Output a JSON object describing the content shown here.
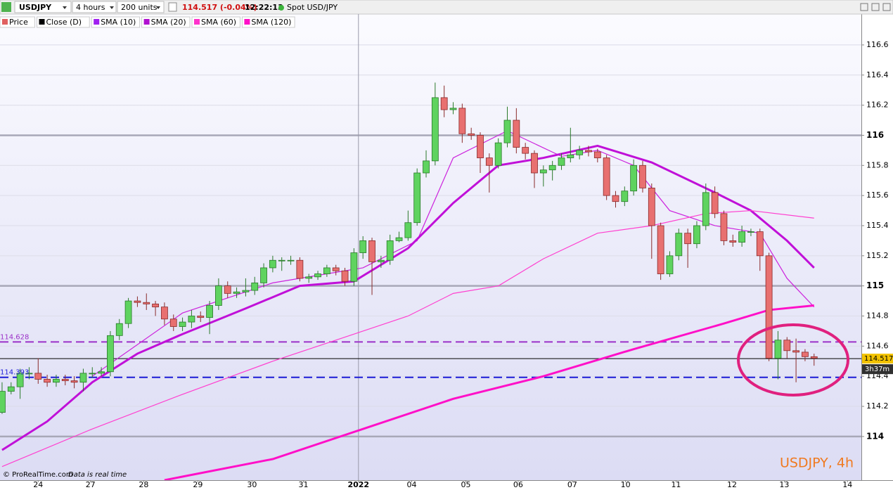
{
  "chart_data": {
    "type": "candlestick",
    "toolbar": {
      "symbol": "USDJPY",
      "interval": "4 hours",
      "units": "200 units",
      "quote": "114.517 (-0.04%)",
      "time": "12:22:13",
      "instrument": "Spot USD/JPY"
    },
    "legend": [
      "Price",
      "Close (D)",
      "SMA (10)",
      "SMA (20)",
      "SMA (60)",
      "SMA (120)"
    ],
    "legend_colors": [
      "#e06060",
      "#000000",
      "#a020f0",
      "#b010d0",
      "#ff33cc",
      "#ff10c8"
    ],
    "up_color": "#5fd35f",
    "down_color": "#e87070",
    "open": [
      114.16,
      114.3,
      114.33,
      114.42,
      114.42,
      114.38,
      114.36,
      114.38,
      114.37,
      114.36,
      114.42,
      114.42,
      114.43,
      114.67,
      114.75,
      114.9,
      114.89,
      114.88,
      114.86,
      114.78,
      114.73,
      114.76,
      114.8,
      114.79,
      114.87,
      115.0,
      114.95,
      114.96,
      114.97,
      115.02,
      115.12,
      115.17,
      115.17,
      115.17,
      115.05,
      115.06,
      115.08,
      115.12,
      115.1,
      115.03,
      115.22,
      115.3,
      115.16,
      115.17,
      115.3,
      115.32,
      115.42,
      115.75,
      115.83,
      116.25,
      116.17,
      116.18,
      116.01,
      116.0,
      115.85,
      115.8,
      115.95,
      116.1,
      115.92,
      115.88,
      115.75,
      115.77,
      115.8,
      115.85,
      115.87,
      115.9,
      115.89,
      115.85,
      115.6,
      115.56,
      115.63,
      115.8,
      115.65,
      115.4,
      115.08,
      115.2,
      115.35,
      115.28,
      115.4,
      115.62,
      115.48,
      115.3,
      115.29,
      115.36,
      115.36,
      115.2,
      114.52,
      114.64,
      114.57,
      114.56,
      114.53
    ],
    "high": [
      114.36,
      114.36,
      114.45,
      114.46,
      114.52,
      114.41,
      114.41,
      114.41,
      114.4,
      114.45,
      114.46,
      114.46,
      114.7,
      114.78,
      114.92,
      114.93,
      114.95,
      114.9,
      114.89,
      114.81,
      114.79,
      114.84,
      114.83,
      114.9,
      115.05,
      115.03,
      114.99,
      115.05,
      115.06,
      115.15,
      115.2,
      115.19,
      115.2,
      115.19,
      115.08,
      115.1,
      115.14,
      115.14,
      115.12,
      115.25,
      115.33,
      115.32,
      115.2,
      115.34,
      115.36,
      115.5,
      115.78,
      115.9,
      116.35,
      116.33,
      116.22,
      116.21,
      116.05,
      116.02,
      115.88,
      115.98,
      116.19,
      116.18,
      115.95,
      115.9,
      115.8,
      115.83,
      115.88,
      116.05,
      115.93,
      115.93,
      115.91,
      115.87,
      115.63,
      115.66,
      115.84,
      115.83,
      115.68,
      115.42,
      115.23,
      115.38,
      115.38,
      115.43,
      115.68,
      115.66,
      115.5,
      115.34,
      115.4,
      115.38,
      115.38,
      115.22,
      114.7,
      114.66,
      114.65,
      114.58,
      114.55
    ],
    "low": [
      114.15,
      114.28,
      114.25,
      114.38,
      114.35,
      114.33,
      114.33,
      114.34,
      114.32,
      114.3,
      114.39,
      114.4,
      114.4,
      114.64,
      114.72,
      114.86,
      114.84,
      114.8,
      114.74,
      114.7,
      114.7,
      114.72,
      114.76,
      114.68,
      114.84,
      114.92,
      114.92,
      114.93,
      114.94,
      114.99,
      115.09,
      115.1,
      115.14,
      115.03,
      115.02,
      115.04,
      115.06,
      115.07,
      115.0,
      115.0,
      115.18,
      114.94,
      115.12,
      115.14,
      115.29,
      115.3,
      115.4,
      115.72,
      115.8,
      116.12,
      116.14,
      115.95,
      115.97,
      115.75,
      115.62,
      115.78,
      115.92,
      115.88,
      115.84,
      115.65,
      115.66,
      115.7,
      115.77,
      115.82,
      115.84,
      115.86,
      115.82,
      115.57,
      115.52,
      115.53,
      115.6,
      115.62,
      115.18,
      115.04,
      115.06,
      115.17,
      115.12,
      115.25,
      115.37,
      115.45,
      115.27,
      115.26,
      115.26,
      115.33,
      115.1,
      114.5,
      114.38,
      114.52,
      114.36,
      114.5,
      114.47
    ],
    "close": [
      114.3,
      114.33,
      114.42,
      114.42,
      114.38,
      114.36,
      114.38,
      114.37,
      114.36,
      114.42,
      114.42,
      114.43,
      114.67,
      114.75,
      114.9,
      114.89,
      114.88,
      114.86,
      114.78,
      114.73,
      114.76,
      114.8,
      114.79,
      114.87,
      115.0,
      114.95,
      114.96,
      114.97,
      115.02,
      115.12,
      115.17,
      115.17,
      115.17,
      115.05,
      115.06,
      115.08,
      115.12,
      115.1,
      115.03,
      115.22,
      115.3,
      115.16,
      115.17,
      115.3,
      115.32,
      115.42,
      115.75,
      115.83,
      116.25,
      116.17,
      116.18,
      116.01,
      116.0,
      115.85,
      115.8,
      115.95,
      116.1,
      115.92,
      115.88,
      115.75,
      115.77,
      115.8,
      115.85,
      115.87,
      115.9,
      115.89,
      115.85,
      115.6,
      115.56,
      115.63,
      115.8,
      115.65,
      115.4,
      115.08,
      115.2,
      115.35,
      115.28,
      115.4,
      115.62,
      115.48,
      115.3,
      115.29,
      115.36,
      115.36,
      115.2,
      114.52,
      114.64,
      114.57,
      114.56,
      114.53,
      114.52
    ],
    "series": [
      {
        "name": "SMA (10)",
        "color": "#cc22dd",
        "width": 1.2,
        "x": [
          10,
          20,
          30,
          40,
          46,
          50,
          56,
          62,
          66,
          70,
          74,
          79,
          84,
          87,
          90
        ],
        "values": [
          114.4,
          114.82,
          115.02,
          115.12,
          115.3,
          115.85,
          116.03,
          115.86,
          115.9,
          115.8,
          115.5,
          115.4,
          115.35,
          115.05,
          114.86
        ]
      },
      {
        "name": "SMA (20)",
        "color": "#c010d8",
        "width": 3,
        "x": [
          0,
          5,
          10,
          15,
          20,
          27,
          33,
          39,
          45,
          50,
          55,
          60,
          66,
          72,
          79,
          83,
          87,
          90
        ],
        "values": [
          113.91,
          114.1,
          114.36,
          114.55,
          114.68,
          114.85,
          115.0,
          115.03,
          115.25,
          115.55,
          115.8,
          115.85,
          115.93,
          115.82,
          115.62,
          115.5,
          115.3,
          115.12
        ]
      },
      {
        "name": "SMA (60)",
        "color": "#ff40d0",
        "width": 1.2,
        "x": [
          0,
          10,
          20,
          30,
          40,
          45,
          50,
          55,
          60,
          66,
          72,
          78,
          83,
          90
        ],
        "values": [
          113.8,
          114.05,
          114.28,
          114.5,
          114.7,
          114.8,
          114.95,
          115.0,
          115.18,
          115.35,
          115.4,
          115.48,
          115.5,
          115.45
        ]
      },
      {
        "name": "SMA (120)",
        "color": "#ff10c8",
        "width": 3,
        "x": [
          18,
          30,
          40,
          50,
          60,
          70,
          80,
          85,
          90
        ],
        "values": [
          113.71,
          113.85,
          114.05,
          114.25,
          114.4,
          114.58,
          114.75,
          114.84,
          114.87
        ]
      }
    ],
    "levels": [
      {
        "value": 114.628,
        "color": "#9b30c8"
      },
      {
        "value": 114.393,
        "color": "#1c1cd8"
      }
    ],
    "last_price": 114.517,
    "countdown": "3h37m",
    "xlim": [
      -0.23,
      95.24
    ],
    "ylim": [
      113.71,
      116.805
    ],
    "yticks": [
      114,
      114.2,
      114.4,
      114.6,
      114.8,
      115,
      115.2,
      115.4,
      115.6,
      115.8,
      116,
      116.2,
      116.4,
      116.6
    ],
    "xticks": [
      {
        "value": 4,
        "label": "24"
      },
      {
        "value": 9.8,
        "label": "27"
      },
      {
        "value": 15.7,
        "label": "28"
      },
      {
        "value": 21.7,
        "label": "29"
      },
      {
        "value": 27.7,
        "label": "30"
      },
      {
        "value": 33.4,
        "label": "31"
      },
      {
        "value": 39.5,
        "label": "2022"
      },
      {
        "value": 45.4,
        "label": "04"
      },
      {
        "value": 51.4,
        "label": "05"
      },
      {
        "value": 57.2,
        "label": "06"
      },
      {
        "value": 63.2,
        "label": "07"
      },
      {
        "value": 69.1,
        "label": "10"
      },
      {
        "value": 74.7,
        "label": "11"
      },
      {
        "value": 80.9,
        "label": "12"
      },
      {
        "value": 86.7,
        "label": "13"
      },
      {
        "value": 93.7,
        "label": "14"
      }
    ],
    "year_marker": 39.5,
    "grid": true,
    "copyright": "© ProRealTime.com",
    "realtime_note": "Data is real time",
    "watermark": "USDJPY, 4h"
  }
}
